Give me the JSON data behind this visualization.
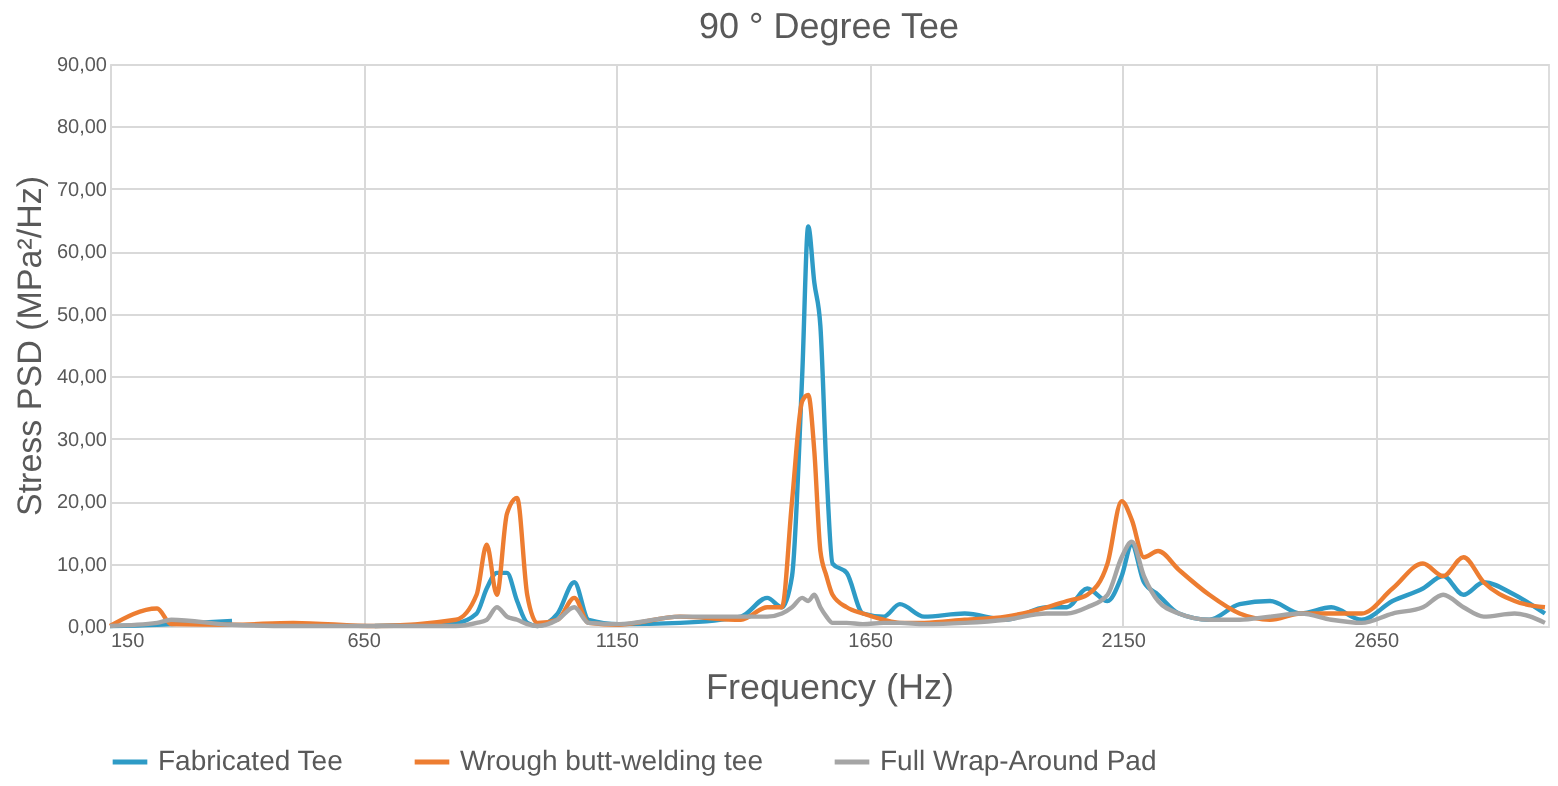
{
  "chart_data": {
    "type": "line",
    "title": "90 ° Degree Tee",
    "xlabel": "Frequency (Hz)",
    "ylabel": "Stress PSD (MPa²/Hz)",
    "x": [
      150,
      243,
      271,
      391,
      512,
      673,
      833,
      874,
      894,
      914,
      934,
      954,
      974,
      994,
      1034,
      1067,
      1095,
      1155,
      1276,
      1396,
      1448,
      1477,
      1497,
      1517,
      1529,
      1541,
      1553,
      1565,
      1577,
      1605,
      1637,
      1678,
      1710,
      1758,
      1838,
      1919,
      2000,
      2040,
      2080,
      2120,
      2148,
      2168,
      2192,
      2220,
      2261,
      2321,
      2381,
      2441,
      2502,
      2562,
      2622,
      2683,
      2743,
      2783,
      2823,
      2863,
      2924,
      2984
    ],
    "series": [
      {
        "name": "Fabricated Tee",
        "color": "#2e9bc6",
        "values": [
          0,
          0.2,
          0.3,
          0.8,
          null,
          0,
          0.5,
          2,
          6,
          8.5,
          8.5,
          4,
          0.5,
          0,
          2,
          7,
          1,
          0.3,
          0.5,
          1.5,
          4.5,
          3,
          8,
          40,
          64,
          55,
          48,
          25,
          10,
          8.5,
          2,
          1.5,
          3.5,
          1.5,
          2,
          1,
          3,
          3,
          6,
          4,
          8,
          13,
          7,
          5,
          2,
          1,
          3.5,
          4,
          2,
          3,
          1,
          4,
          6,
          8,
          5,
          7,
          5,
          2
        ]
      },
      {
        "name": "Wrough butt-welding tee",
        "color": "#ed7d31",
        "values": [
          0,
          2.8,
          0.3,
          0.2,
          0.5,
          0,
          1,
          5,
          13,
          5,
          18,
          20.5,
          5,
          0.5,
          1,
          4.5,
          0.5,
          0.2,
          1.5,
          1,
          3,
          3,
          20,
          36,
          37,
          28,
          12,
          8,
          5,
          3,
          2,
          1,
          0.5,
          0.5,
          1,
          1.5,
          3,
          4,
          5,
          10,
          20,
          17,
          11,
          12,
          9,
          5,
          2,
          1,
          2,
          2,
          2,
          6,
          10,
          8,
          11,
          7,
          4,
          3
        ]
      },
      {
        "name": "Full Wrap-Around Pad",
        "color": "#a5a5a5",
        "values": [
          0,
          0.5,
          1,
          0.2,
          0,
          0,
          0,
          0.5,
          1,
          3,
          1.5,
          1,
          0.3,
          0,
          1,
          3,
          0.5,
          0.3,
          1.5,
          1.5,
          1.5,
          2,
          3,
          4.5,
          4,
          5,
          3,
          1.5,
          0.5,
          0.5,
          0.3,
          0.5,
          0.5,
          0.3,
          0.5,
          1,
          2,
          2,
          3,
          5,
          11,
          13.5,
          8,
          4,
          2,
          1,
          1,
          1.5,
          2,
          1,
          0.5,
          2,
          3,
          5,
          3,
          1.5,
          2,
          0.5
        ]
      }
    ],
    "xlim": [
      150,
      2990
    ],
    "xticks": [
      150,
      650,
      1150,
      1650,
      2150,
      2650
    ],
    "ylim": [
      0,
      90
    ],
    "yticks": [
      {
        "value": 0,
        "label": "0,00"
      },
      {
        "value": 10,
        "label": "10,00"
      },
      {
        "value": 20,
        "label": "20,00"
      },
      {
        "value": 30,
        "label": "30,00"
      },
      {
        "value": 40,
        "label": "40,00"
      },
      {
        "value": 50,
        "label": "50,00"
      },
      {
        "value": 60,
        "label": "60,00"
      },
      {
        "value": 70,
        "label": "70,00"
      },
      {
        "value": 80,
        "label": "80,00"
      },
      {
        "value": 90,
        "label": "90,00"
      }
    ],
    "grid": true,
    "legend": "bottom",
    "marker": "none",
    "line_style": "solid"
  }
}
